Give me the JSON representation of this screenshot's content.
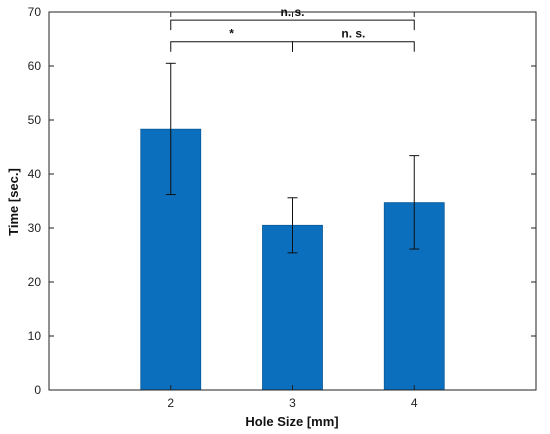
{
  "chart_data": {
    "type": "bar",
    "xlabel": "Hole Size [mm]",
    "ylabel": "Time [sec.]",
    "categories": [
      "2",
      "3",
      "4"
    ],
    "values": [
      48.3,
      30.5,
      34.7
    ],
    "error_low": [
      36.2,
      25.4,
      26.1
    ],
    "error_high": [
      60.5,
      35.6,
      43.4
    ],
    "ylim": [
      0,
      70
    ],
    "yticks": [
      0,
      10,
      20,
      30,
      40,
      50,
      60,
      70
    ],
    "grid": false,
    "bar_color": "#0b6fbd",
    "annotations": [
      {
        "from": "2",
        "to": "3",
        "label": "*",
        "level": 64.5
      },
      {
        "from": "3",
        "to": "4",
        "label": "n. s.",
        "level": 64.5
      },
      {
        "from": "2",
        "to": "4",
        "label": "n. s.",
        "level": 68.5
      }
    ]
  }
}
